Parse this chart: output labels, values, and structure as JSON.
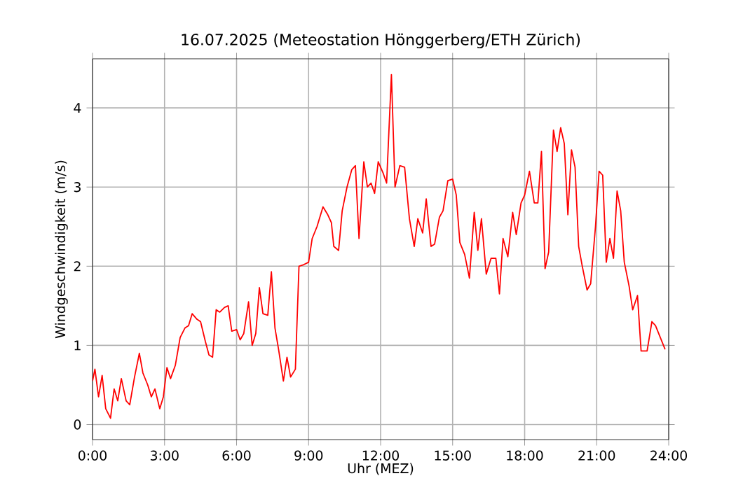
{
  "chart_data": {
    "type": "line",
    "title": "16.07.2025  (Meteostation Hönggerberg/ETH Zürich)",
    "xlabel": "Uhr (MEZ)",
    "ylabel": "Windgeschwindigkeit (m/s)",
    "x": [
      0,
      0.1,
      0.25,
      0.4,
      0.55,
      0.75,
      0.9,
      1.05,
      1.2,
      1.4,
      1.55,
      1.75,
      1.95,
      2.1,
      2.3,
      2.45,
      2.6,
      2.8,
      2.95,
      3.1,
      3.25,
      3.45,
      3.65,
      3.85,
      4.0,
      4.15,
      4.35,
      4.5,
      4.7,
      4.85,
      5.0,
      5.15,
      5.3,
      5.5,
      5.65,
      5.8,
      6.0,
      6.15,
      6.3,
      6.5,
      6.65,
      6.8,
      6.95,
      7.1,
      7.3,
      7.45,
      7.6,
      7.75,
      7.95,
      8.1,
      8.25,
      8.45,
      8.6,
      8.8,
      9.0,
      9.15,
      9.35,
      9.6,
      9.8,
      9.95,
      10.05,
      10.25,
      10.4,
      10.6,
      10.8,
      10.95,
      11.1,
      11.3,
      11.45,
      11.6,
      11.75,
      11.9,
      12.1,
      12.25,
      12.45,
      12.6,
      12.8,
      13.0,
      13.2,
      13.4,
      13.55,
      13.75,
      13.9,
      14.1,
      14.25,
      14.45,
      14.6,
      14.8,
      15.0,
      15.15,
      15.3,
      15.5,
      15.7,
      15.9,
      16.05,
      16.2,
      16.4,
      16.6,
      16.8,
      16.95,
      17.1,
      17.3,
      17.5,
      17.65,
      17.85,
      18.0,
      18.2,
      18.4,
      18.55,
      18.7,
      18.85,
      19.0,
      19.2,
      19.35,
      19.5,
      19.65,
      19.8,
      19.95,
      20.1,
      20.25,
      20.4,
      20.6,
      20.75,
      20.95,
      21.1,
      21.25,
      21.4,
      21.55,
      21.7,
      21.85,
      22.0,
      22.15,
      22.35,
      22.5,
      22.7,
      22.85,
      23.1,
      23.3,
      23.45,
      23.65,
      23.85
    ],
    "values": [
      0.55,
      0.7,
      0.35,
      0.62,
      0.2,
      0.08,
      0.45,
      0.3,
      0.58,
      0.3,
      0.25,
      0.6,
      0.9,
      0.65,
      0.5,
      0.35,
      0.45,
      0.2,
      0.35,
      0.72,
      0.58,
      0.75,
      1.1,
      1.22,
      1.25,
      1.4,
      1.33,
      1.3,
      1.05,
      0.88,
      0.85,
      1.45,
      1.42,
      1.48,
      1.5,
      1.18,
      1.2,
      1.07,
      1.15,
      1.55,
      1.0,
      1.15,
      1.73,
      1.4,
      1.38,
      1.93,
      1.22,
      0.95,
      0.55,
      0.85,
      0.6,
      0.7,
      2.0,
      2.02,
      2.05,
      2.35,
      2.5,
      2.75,
      2.65,
      2.55,
      2.25,
      2.2,
      2.7,
      3.0,
      3.22,
      3.27,
      2.35,
      3.32,
      3.0,
      3.05,
      2.92,
      3.32,
      3.18,
      3.05,
      4.42,
      3.0,
      3.27,
      3.25,
      2.6,
      2.25,
      2.6,
      2.42,
      2.85,
      2.25,
      2.28,
      2.62,
      2.7,
      3.08,
      3.1,
      2.9,
      2.3,
      2.15,
      1.85,
      2.68,
      2.2,
      2.6,
      1.9,
      2.1,
      2.1,
      1.65,
      2.35,
      2.12,
      2.68,
      2.4,
      2.8,
      2.9,
      3.2,
      2.8,
      2.8,
      3.45,
      1.97,
      2.18,
      3.72,
      3.45,
      3.75,
      3.55,
      2.65,
      3.47,
      3.25,
      2.25,
      2.0,
      1.7,
      1.78,
      2.5,
      3.2,
      3.15,
      2.05,
      2.35,
      2.1,
      2.95,
      2.7,
      2.05,
      1.75,
      1.45,
      1.63,
      0.93,
      0.93,
      1.3,
      1.25,
      1.1,
      0.95
    ],
    "color": "#ff0000",
    "xlim": [
      0,
      24
    ],
    "ylim": [
      -0.19,
      4.62
    ],
    "xticks": [
      {
        "value": 0,
        "label": "0:00"
      },
      {
        "value": 3,
        "label": "3:00"
      },
      {
        "value": 6,
        "label": "6:00"
      },
      {
        "value": 9,
        "label": "9:00"
      },
      {
        "value": 12,
        "label": "12:00"
      },
      {
        "value": 15,
        "label": "15:00"
      },
      {
        "value": 18,
        "label": "18:00"
      },
      {
        "value": 21,
        "label": "21:00"
      },
      {
        "value": 24,
        "label": "24:00"
      }
    ],
    "yticks": [
      0,
      1,
      2,
      3,
      4
    ],
    "grid": true
  }
}
